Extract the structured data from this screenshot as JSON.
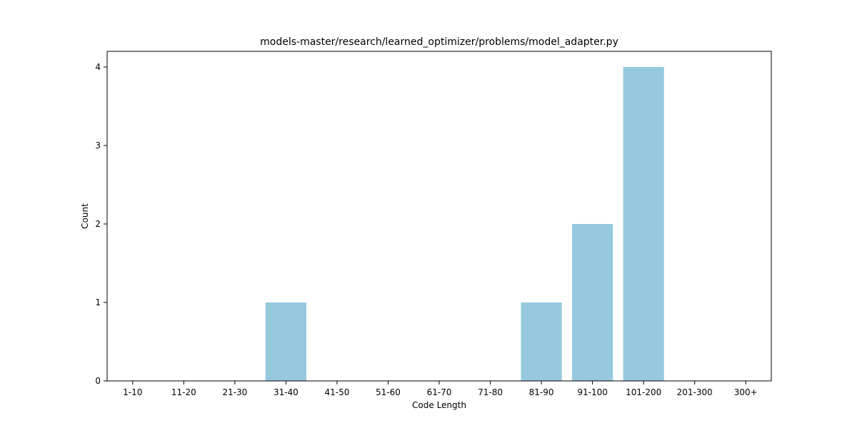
{
  "chart_data": {
    "type": "bar",
    "title": "models-master/research/learned_optimizer/problems/model_adapter.py",
    "xlabel": "Code Length",
    "ylabel": "Count",
    "categories": [
      "1-10",
      "11-20",
      "21-30",
      "31-40",
      "41-50",
      "51-60",
      "61-70",
      "71-80",
      "81-90",
      "91-100",
      "101-200",
      "201-300",
      "300+"
    ],
    "values": [
      0,
      0,
      0,
      1,
      0,
      0,
      0,
      0,
      1,
      2,
      4,
      0,
      0
    ],
    "ylim": [
      0,
      4.2
    ],
    "yticks": [
      "0",
      "1",
      "2",
      "3",
      "4"
    ],
    "grid": false,
    "colors": {
      "bar": "#96c9de",
      "axis": "#000000"
    }
  }
}
